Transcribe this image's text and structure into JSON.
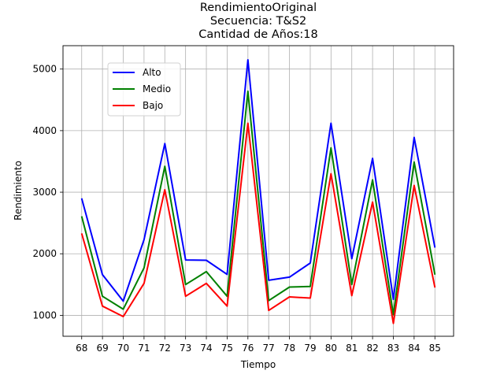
{
  "chart_data": {
    "type": "line",
    "title": [
      "RendimientoOriginal",
      "Secuencia: T&S2",
      "Cantidad de Años:18"
    ],
    "xlabel": "Tiempo",
    "ylabel": "Rendimiento",
    "x": [
      68,
      69,
      70,
      71,
      72,
      73,
      74,
      75,
      76,
      77,
      78,
      79,
      80,
      81,
      82,
      83,
      84,
      85
    ],
    "xticks": [
      "68",
      "69",
      "70",
      "71",
      "72",
      "73",
      "74",
      "75",
      "76",
      "77",
      "78",
      "79",
      "80",
      "81",
      "82",
      "83",
      "84",
      "85"
    ],
    "yticks": [
      1000,
      2000,
      3000,
      4000,
      5000
    ],
    "xlim": [
      67.1,
      85.9
    ],
    "ylim": [
      660,
      5380
    ],
    "grid": true,
    "legend_position": "upper-left",
    "series": [
      {
        "name": "Alto",
        "color": "#0000ff",
        "values": [
          2900,
          1660,
          1230,
          2230,
          3790,
          1900,
          1895,
          1665,
          5150,
          1570,
          1620,
          1850,
          4120,
          1920,
          3550,
          1260,
          3890,
          2100
        ]
      },
      {
        "name": "Medio",
        "color": "#008000",
        "values": [
          2610,
          1310,
          1100,
          1770,
          3420,
          1500,
          1710,
          1310,
          4640,
          1240,
          1460,
          1470,
          3720,
          1500,
          3200,
          1010,
          3490,
          1660
        ]
      },
      {
        "name": "Bajo",
        "color": "#ff0000",
        "values": [
          2330,
          1150,
          980,
          1520,
          3040,
          1310,
          1520,
          1150,
          4120,
          1080,
          1300,
          1280,
          3300,
          1320,
          2840,
          870,
          3110,
          1450
        ]
      }
    ]
  }
}
